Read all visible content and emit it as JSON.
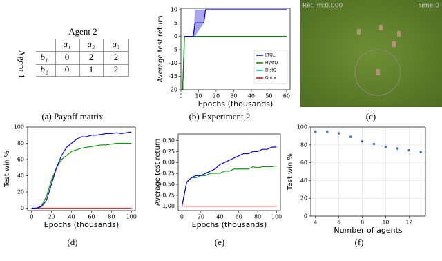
{
  "payoff_table": {
    "column_header": "Agent 2",
    "row_header": "Agent 1",
    "columns": [
      "a₁",
      "a₂",
      "a₃"
    ],
    "rows": [
      {
        "label": "b₁",
        "cells": [
          "0",
          "2",
          "2"
        ]
      },
      {
        "label": "b₂",
        "cells": [
          "0",
          "1",
          "2"
        ]
      }
    ]
  },
  "game": {
    "hud_left": "Ret. m:0.000",
    "hud_right": "Time:0"
  },
  "captions": [
    "(a) Payoff matrix",
    "(b) Experiment 2",
    "(c)",
    "(d)",
    "(e)",
    "(f)"
  ],
  "chart_data": [
    {
      "type": "line",
      "x_label": "Epochs (thousands)",
      "y_label": "Average test return",
      "x": [
        1,
        2,
        7,
        8,
        13,
        14,
        60
      ],
      "xlim": [
        0,
        62
      ],
      "xticks": [
        0,
        10,
        20,
        30,
        40,
        50,
        60
      ],
      "ylim": [
        -20,
        10.5
      ],
      "yticks": [
        -20,
        -15,
        -10,
        -5,
        0,
        5,
        10
      ],
      "legend": "lower right",
      "series": [
        {
          "name": "LTQL",
          "color": "#0000cc",
          "values": [
            null,
            0,
            0,
            5,
            5,
            10,
            10
          ],
          "band_lower": [
            null,
            0,
            0,
            0,
            5,
            10,
            10
          ],
          "band_upper": [
            null,
            0,
            0,
            10,
            10,
            10,
            10
          ]
        },
        {
          "name": "HystQ",
          "color": "#008000",
          "values": [
            -20,
            0,
            0,
            0,
            0,
            0,
            0
          ]
        },
        {
          "name": "DistQ",
          "color": "#00bfbf",
          "values": [
            -20,
            0,
            0,
            0,
            0,
            0,
            0
          ]
        },
        {
          "name": "Qmix",
          "color": "#dd0000",
          "values": [
            -20,
            0,
            0,
            0,
            0,
            0,
            0
          ]
        }
      ]
    },
    {
      "type": "line",
      "x_label": "Epochs (thousands)",
      "y_label": "Test win %",
      "x": [
        0,
        5,
        10,
        15,
        20,
        25,
        30,
        35,
        40,
        45,
        50,
        55,
        60,
        65,
        70,
        75,
        80,
        85,
        90,
        95,
        100
      ],
      "xlim": [
        -4,
        104
      ],
      "xticks": [
        0,
        20,
        40,
        60,
        80,
        100
      ],
      "ylim": [
        -3,
        100
      ],
      "yticks": [
        0,
        20,
        40,
        60,
        80,
        100
      ],
      "series": [
        {
          "name": "LTQL",
          "color": "#0000ee",
          "values": [
            0,
            0,
            2,
            10,
            30,
            50,
            65,
            75,
            80,
            85,
            88,
            88,
            90,
            90,
            91,
            92,
            92,
            93,
            92,
            93,
            94
          ]
        },
        {
          "name": "HystQ",
          "color": "#119911",
          "values": [
            0,
            0,
            3,
            15,
            35,
            50,
            60,
            65,
            70,
            72,
            74,
            75,
            76,
            77,
            78,
            78,
            79,
            80,
            80,
            80,
            80
          ]
        },
        {
          "name": "Qmix",
          "color": "#ee3333",
          "values": [
            0,
            0,
            0,
            0,
            0,
            0,
            0,
            0,
            0,
            0,
            0,
            0,
            0,
            0,
            0,
            0,
            0,
            0,
            0,
            0,
            0
          ]
        }
      ]
    },
    {
      "type": "line",
      "x_label": "Epochs (thousands)",
      "y_label": "Average test return",
      "x": [
        0,
        5,
        10,
        15,
        20,
        25,
        30,
        35,
        40,
        45,
        50,
        55,
        60,
        65,
        70,
        75,
        80,
        85,
        90,
        95,
        100
      ],
      "xlim": [
        -4,
        104
      ],
      "xticks": [
        0,
        20,
        40,
        60,
        80,
        100
      ],
      "ylim": [
        -1.1,
        0.65
      ],
      "yticks": [
        {
          "value": -1,
          "label": "−1.00"
        },
        {
          "value": -0.75,
          "label": "−0.75"
        },
        {
          "value": -0.5,
          "label": "−0.50"
        },
        {
          "value": -0.25,
          "label": "−0.25"
        },
        {
          "value": 0,
          "label": "0.00"
        },
        {
          "value": 0.25,
          "label": "0.25"
        },
        {
          "value": 0.5,
          "label": "0.50"
        }
      ],
      "series": [
        {
          "name": "LTQL",
          "color": "#0000ee",
          "values": [
            -1.0,
            -0.45,
            -0.35,
            -0.3,
            -0.3,
            -0.25,
            -0.2,
            -0.15,
            -0.05,
            0.0,
            0.05,
            0.1,
            0.15,
            0.2,
            0.2,
            0.25,
            0.25,
            0.3,
            0.3,
            0.35,
            0.35
          ]
        },
        {
          "name": "HystQ",
          "color": "#119911",
          "values": [
            -1.0,
            -0.45,
            -0.35,
            -0.35,
            -0.3,
            -0.3,
            -0.25,
            -0.25,
            -0.25,
            -0.2,
            -0.2,
            -0.15,
            -0.15,
            -0.15,
            -0.15,
            -0.1,
            -0.12,
            -0.1,
            -0.1,
            -0.1,
            -0.08
          ]
        },
        {
          "name": "Qmix",
          "color": "#ee3333",
          "values": [
            -1.0,
            -1.0,
            -1.0,
            -1.0,
            -1.0,
            -1.0,
            -1.0,
            -1.0,
            -1.0,
            -1.0,
            -1.0,
            -1.0,
            -1.0,
            -1.0,
            -1.0,
            -1.0,
            -1.0,
            -1.0,
            -1.0,
            -1.0,
            -1.0
          ]
        }
      ]
    },
    {
      "type": "scatter",
      "x_label": "Number of agents",
      "y_label": "Test win %",
      "x": [
        4,
        5,
        6,
        7,
        8,
        9,
        10,
        11,
        12,
        13
      ],
      "values": [
        95,
        95,
        93,
        89,
        84,
        81,
        78,
        76,
        74,
        72
      ],
      "color": "#3a78c0",
      "xlim": [
        3.6,
        13.4
      ],
      "xticks": [
        4,
        6,
        8,
        10,
        12
      ],
      "ylim": [
        0,
        100
      ],
      "yticks": [
        0,
        20,
        40,
        60,
        80,
        100
      ],
      "grid": true
    }
  ]
}
